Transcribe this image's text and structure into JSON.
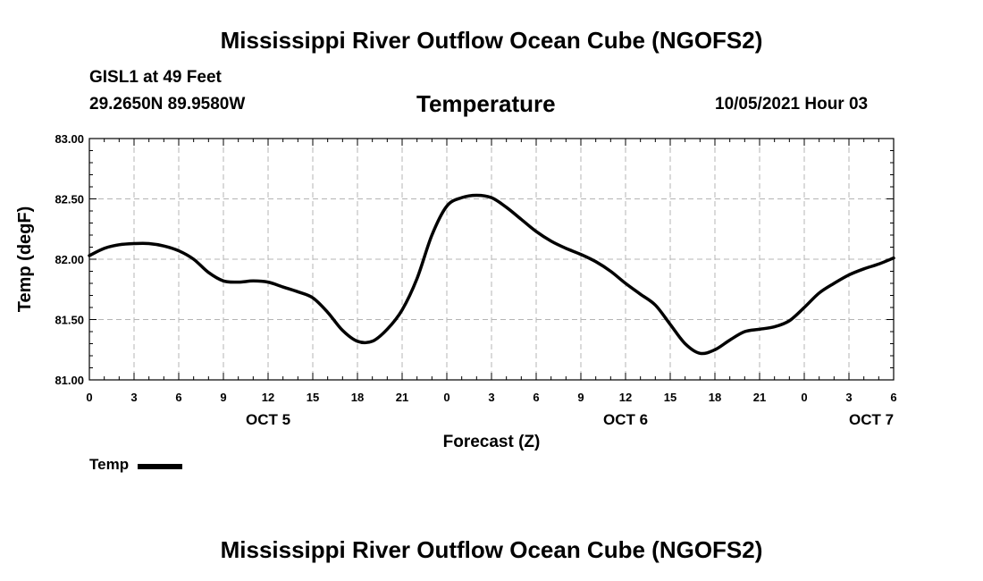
{
  "header": {
    "title": "Mississippi River Outflow Ocean Cube (NGOFS2)",
    "station": "GISL1 at 49 Feet",
    "coordinates": "29.2650N  89.9580W",
    "chart_title": "Temperature",
    "date": "10/05/2021 Hour 03"
  },
  "footer": {
    "title": "Mississippi River Outflow Ocean Cube (NGOFS2)"
  },
  "legend": {
    "label": "Temp"
  },
  "colors": {
    "line": "#000000",
    "grid": "#b4b4b4",
    "axis": "#000000"
  },
  "chart_data": {
    "type": "line",
    "title": "Temperature",
    "xlabel": "Forecast (Z)",
    "ylabel": "Temp (degF)",
    "xlim": [
      0,
      54
    ],
    "ylim": [
      81.0,
      83.0
    ],
    "grid": true,
    "legend_position": "bottom-left",
    "y_ticks": [
      81.0,
      81.5,
      82.0,
      82.5,
      83.0
    ],
    "y_tick_labels": [
      "81.00",
      "81.50",
      "82.00",
      "82.50",
      "83.00"
    ],
    "x_ticks": [
      0,
      3,
      6,
      9,
      12,
      15,
      18,
      21,
      24,
      27,
      30,
      33,
      36,
      39,
      42,
      45,
      48,
      51,
      54
    ],
    "x_tick_labels": [
      "0",
      "3",
      "6",
      "9",
      "12",
      "15",
      "18",
      "21",
      "0",
      "3",
      "6",
      "9",
      "12",
      "15",
      "18",
      "21",
      "0",
      "3",
      "6"
    ],
    "day_labels": [
      {
        "at": 12,
        "label": "OCT 5"
      },
      {
        "at": 36,
        "label": "OCT 6"
      },
      {
        "at": 52.5,
        "label": "OCT 7"
      }
    ],
    "series": [
      {
        "name": "Temp",
        "x": [
          0,
          1,
          2,
          3,
          4,
          5,
          6,
          7,
          8,
          9,
          10,
          11,
          12,
          13,
          14,
          15,
          16,
          17,
          18,
          19,
          20,
          21,
          22,
          23,
          24,
          25,
          26,
          27,
          28,
          29,
          30,
          31,
          32,
          33,
          34,
          35,
          36,
          37,
          38,
          39,
          40,
          41,
          42,
          43,
          44,
          45,
          46,
          47,
          48,
          49,
          50,
          51,
          52,
          53,
          54
        ],
        "values": [
          82.03,
          82.09,
          82.12,
          82.13,
          82.13,
          82.11,
          82.07,
          82.0,
          81.89,
          81.82,
          81.81,
          81.82,
          81.81,
          81.77,
          81.73,
          81.68,
          81.56,
          81.41,
          81.32,
          81.32,
          81.42,
          81.58,
          81.84,
          82.2,
          82.44,
          82.51,
          82.53,
          82.51,
          82.43,
          82.33,
          82.23,
          82.15,
          82.09,
          82.04,
          81.98,
          81.9,
          81.8,
          81.71,
          81.62,
          81.46,
          81.3,
          81.22,
          81.25,
          81.33,
          81.4,
          81.42,
          81.44,
          81.49,
          81.6,
          81.72,
          81.8,
          81.87,
          81.92,
          81.96,
          82.01
        ]
      }
    ]
  }
}
